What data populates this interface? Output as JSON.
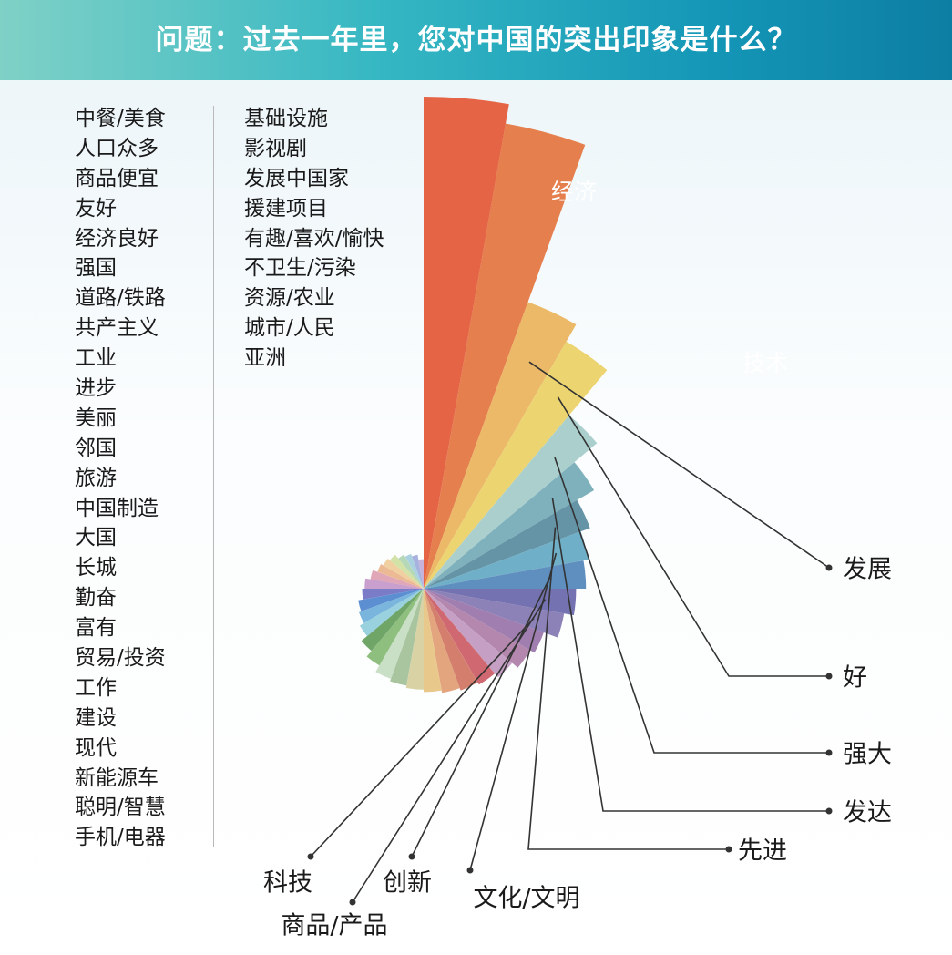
{
  "header": {
    "title": "问题：过去一年里，您对中国的突出印象是什么？",
    "colors": [
      "#7fd1c6",
      "#1496b7"
    ]
  },
  "legend_left": [
    "中餐/美食",
    "人口众多",
    "商品便宜",
    "友好",
    "经济良好",
    "强国",
    "道路/铁路",
    "共产主义",
    "工业",
    "进步",
    "美丽",
    "邻国",
    "旅游",
    "中国制造",
    "大国",
    "长城",
    "勤奋",
    "富有",
    "贸易/投资",
    "工作",
    "建设",
    "现代",
    "新能源车",
    "聪明/智慧",
    "手机/电器"
  ],
  "legend_right": [
    "基础设施",
    "影视剧",
    "发展中国家",
    "援建项目",
    "有趣/喜欢/愉快",
    "不卫生/污染",
    "资源/农业",
    "城市/人民",
    "亚洲"
  ],
  "chart_data": {
    "type": "pie",
    "subtype": "polar-area",
    "unit": "relative",
    "series": [
      {
        "label": "经济",
        "value": 100,
        "color": "#e56446"
      },
      {
        "label": "技术",
        "value": 96,
        "color": "#e57f4e"
      },
      {
        "label": "发展",
        "value": 62,
        "color": "#ebb968"
      },
      {
        "label": "好",
        "value": 58,
        "color": "#ecd471"
      },
      {
        "label": "强大",
        "value": 46,
        "color": "#aacfcd"
      },
      {
        "label": "发达",
        "value": 40,
        "color": "#7fb1bd"
      },
      {
        "label": "先进",
        "value": 36,
        "color": "#6594a6"
      },
      {
        "label": "文化/文明",
        "value": 34,
        "color": "#6fb0c8"
      },
      {
        "label": "创新",
        "value": 33,
        "color": "#5f8fbe"
      },
      {
        "label": "商品/产品",
        "value": 31,
        "color": "#7472b0"
      },
      {
        "label": "科技",
        "value": 29,
        "color": "#8c82b8"
      },
      {
        "label": "手机/电器",
        "value": 26,
        "color": "#a07fb0"
      },
      {
        "label": "聪明/智慧",
        "value": 25,
        "color": "#b488ae"
      },
      {
        "label": "新能源车",
        "value": 23.5,
        "color": "#c5a0c4"
      },
      {
        "label": "现代",
        "value": 22.5,
        "color": "#cf6870"
      },
      {
        "label": "建设",
        "value": 22,
        "color": "#d47f6e"
      },
      {
        "label": "工作",
        "value": 21.5,
        "color": "#e2a57e"
      },
      {
        "label": "贸易/投资",
        "value": 21,
        "color": "#e9c88b"
      },
      {
        "label": "富有",
        "value": 20.5,
        "color": "#d8d2a4"
      },
      {
        "label": "勤奋",
        "value": 20,
        "color": "#a9c59f"
      },
      {
        "label": "长城",
        "value": 19.5,
        "color": "#c9dfc6"
      },
      {
        "label": "大国",
        "value": 18,
        "color": "#8fbf7e"
      },
      {
        "label": "中国制造",
        "value": 16.5,
        "color": "#70a568"
      },
      {
        "label": "旅游",
        "value": 15,
        "color": "#9ad1de"
      },
      {
        "label": "邻国",
        "value": 14,
        "color": "#79b5dc"
      },
      {
        "label": "美丽",
        "value": 13.5,
        "color": "#5c8ed2"
      },
      {
        "label": "进步",
        "value": 12.5,
        "color": "#7a7cc8"
      },
      {
        "label": "工业",
        "value": 12,
        "color": "#c99fcd"
      },
      {
        "label": "共产主义",
        "value": 11,
        "color": "#e0a7b9"
      },
      {
        "label": "道路/铁路",
        "value": 10,
        "color": "#ecb995"
      },
      {
        "label": "强国",
        "value": 9.5,
        "color": "#f0d0a0"
      },
      {
        "label": "经济良好",
        "value": 9,
        "color": "#d3e3a8"
      },
      {
        "label": "友好",
        "value": 8,
        "color": "#b5d8b8"
      },
      {
        "label": "商品便宜",
        "value": 7.5,
        "color": "#a9d1e0"
      },
      {
        "label": "人口众多",
        "value": 7,
        "color": "#a7b3de"
      },
      {
        "label": "中餐/美食",
        "value": 6,
        "color": "#c7b2dc"
      }
    ],
    "annotated": [
      "发展",
      "好",
      "强大",
      "发达",
      "先进",
      "文化/文明",
      "创新",
      "商品/产品",
      "科技"
    ],
    "inner_labels": [
      "经济",
      "技术"
    ]
  }
}
